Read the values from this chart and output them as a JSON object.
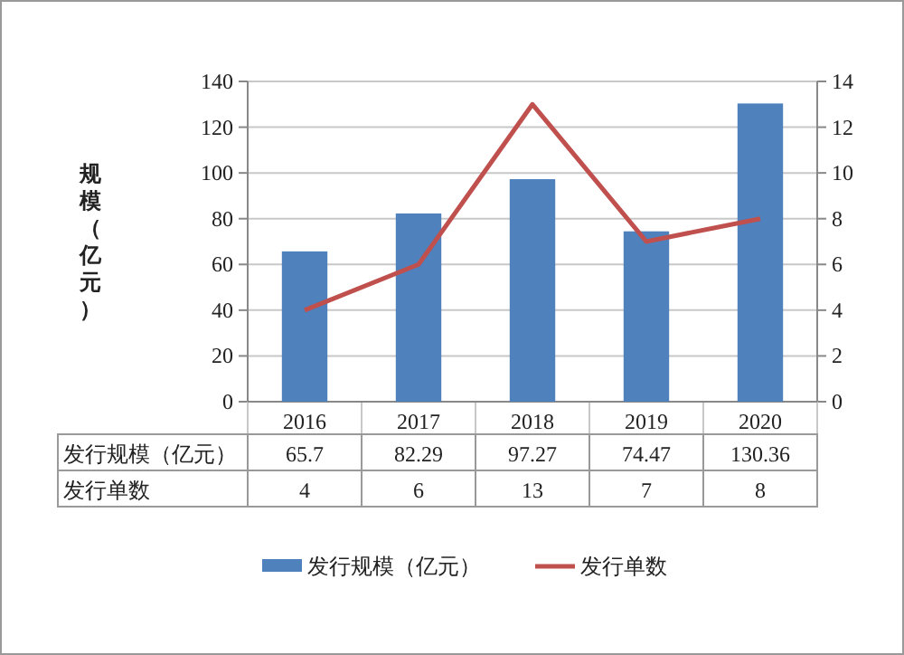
{
  "chart_data": {
    "type": "bar",
    "ylabel": "规模（亿元）",
    "categories": [
      "2016",
      "2017",
      "2018",
      "2019",
      "2020"
    ],
    "series": [
      {
        "name": "发行规模（亿元）",
        "color": "#4f81bd",
        "values": [
          65.7,
          82.29,
          97.27,
          74.47,
          130.36
        ]
      },
      {
        "name": "发行单数",
        "type": "line",
        "axis": "y2",
        "color": "#c0504d",
        "values": [
          4,
          6,
          13,
          7,
          8
        ]
      }
    ],
    "ylim": [
      0,
      140
    ],
    "yticks": [
      0,
      20,
      40,
      60,
      80,
      100,
      120,
      140
    ],
    "y2lim": [
      0,
      14
    ],
    "y2ticks": [
      0,
      2,
      4,
      6,
      8,
      10,
      12,
      14
    ],
    "grid": "y",
    "legend": "bottom",
    "data_labels": true
  }
}
